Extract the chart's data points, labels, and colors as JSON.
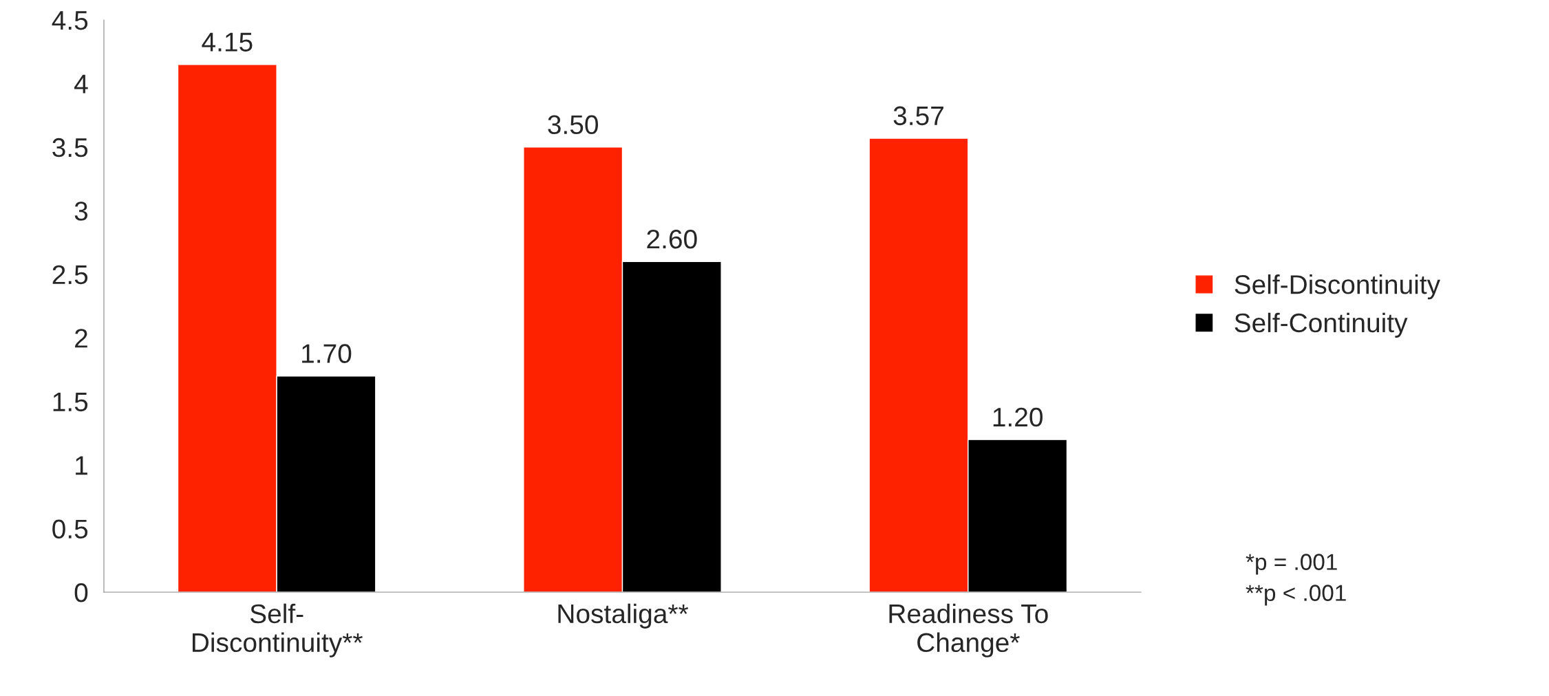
{
  "chart_data": {
    "type": "bar",
    "categories": [
      "Self-\nDiscontinuity**",
      "Nostaliga**",
      "Readiness To\nChange*"
    ],
    "series": [
      {
        "name": "Self-Discontinuity",
        "color": "#ff2200",
        "values": [
          4.15,
          3.5,
          3.57
        ],
        "value_labels": [
          "4.15",
          "3.50",
          "3.57"
        ]
      },
      {
        "name": "Self-Continuity",
        "color": "#000000",
        "values": [
          1.7,
          2.6,
          1.2
        ],
        "value_labels": [
          "1.70",
          "2.60",
          "1.20"
        ]
      }
    ],
    "ylim": [
      0,
      4.5
    ],
    "yticks": [
      0,
      0.5,
      1,
      1.5,
      2,
      2.5,
      3,
      3.5,
      4,
      4.5
    ],
    "grid": false,
    "legend": "right",
    "annotations": [
      "*p = .001",
      "**p < .001"
    ]
  }
}
